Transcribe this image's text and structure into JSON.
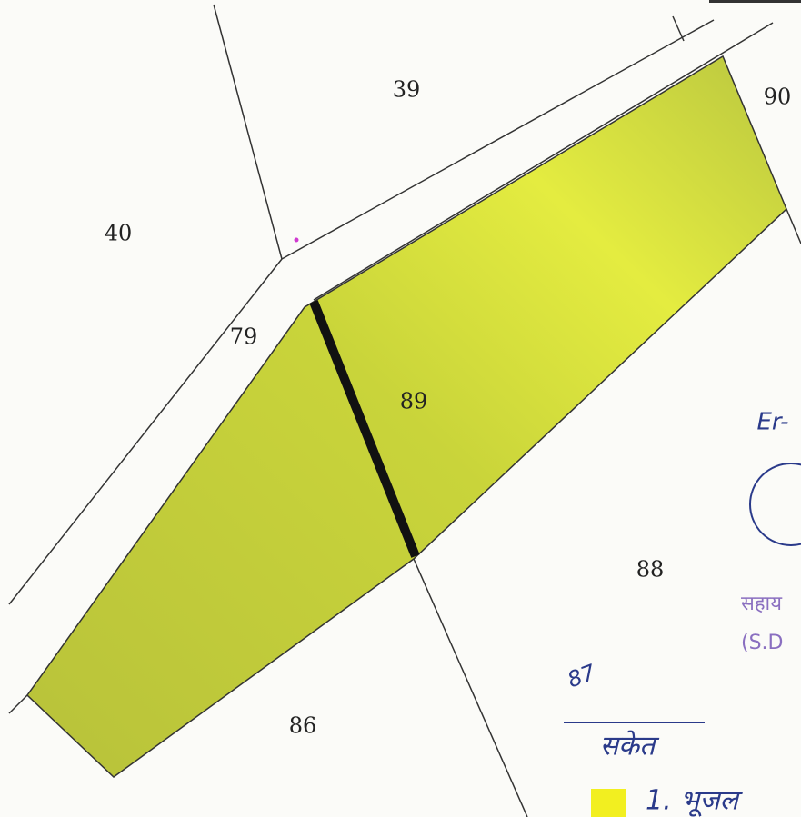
{
  "parcels": [
    {
      "label": "39"
    },
    {
      "label": "40"
    },
    {
      "label": "90"
    },
    {
      "label": "79"
    },
    {
      "label": "89"
    },
    {
      "label": "88"
    },
    {
      "label": "86"
    }
  ],
  "annotations": {
    "handwritten_number": "87",
    "legend_heading": "सकेत",
    "legend_item": "1. भूजल",
    "signature_prefix": "Er-"
  },
  "stamp": {
    "line1": "सहाय",
    "line2": "(S.D"
  }
}
